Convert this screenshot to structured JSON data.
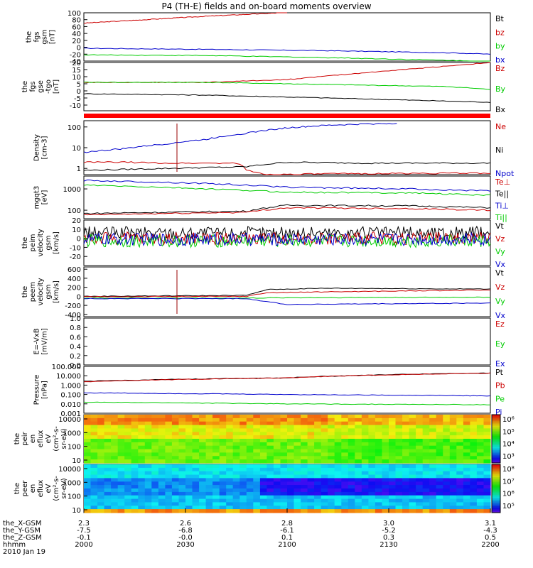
{
  "title": "P4 (TH-E) fields and on-board moments overview",
  "colors": {
    "black": "#000000",
    "red": "#cc0000",
    "green": "#00cc00",
    "blue": "#0000cc",
    "bar_red": "#ff0000"
  },
  "chart_data": [
    {
      "type": "line",
      "panel": "fgs-gsm",
      "ylabel": [
        "the",
        "fgs",
        "gsm",
        "[nT]"
      ],
      "ylim": [
        -40,
        100
      ],
      "y_ticks": [
        "100",
        "80",
        "60",
        "40",
        "20",
        "0",
        "-20",
        "-40"
      ],
      "legend": [
        {
          "name": "Bt",
          "color": "black"
        },
        {
          "name": "bz",
          "color": "red"
        },
        {
          "name": "by",
          "color": "green"
        },
        {
          "name": "bx",
          "color": "blue"
        }
      ],
      "series": [
        {
          "name": "bz",
          "color": "red",
          "x": [
            0,
            0.15,
            0.3,
            0.45,
            0.5
          ],
          "y": [
            70,
            80,
            90,
            98,
            101
          ]
        },
        {
          "name": "by",
          "color": "green",
          "x": [
            0,
            0.3,
            0.6,
            0.9,
            1
          ],
          "y": [
            -22,
            -24,
            -30,
            -38,
            -42
          ]
        },
        {
          "name": "bx",
          "color": "blue",
          "x": [
            0,
            0.3,
            0.6,
            0.9,
            1
          ],
          "y": [
            -3,
            -6,
            -10,
            -16,
            -20
          ]
        }
      ]
    },
    {
      "type": "line",
      "panel": "fgs-gse",
      "ylabel": [
        "the",
        "fgs",
        "gse",
        "-tgo",
        "[nT]"
      ],
      "ylim": [
        -14,
        20
      ],
      "y_ticks": [
        "20",
        "15",
        "10",
        "5",
        "0",
        "-5",
        "-10"
      ],
      "legend": [
        {
          "name": "Bz",
          "color": "red"
        },
        {
          "name": "By",
          "color": "green"
        },
        {
          "name": "Bx",
          "color": "black"
        }
      ],
      "series": [
        {
          "name": "Bz",
          "color": "red",
          "x": [
            0,
            0.3,
            0.5,
            0.7,
            1
          ],
          "y": [
            6,
            6,
            8,
            13,
            20
          ]
        },
        {
          "name": "By",
          "color": "green",
          "x": [
            0,
            0.3,
            0.5,
            0.7,
            0.9,
            1
          ],
          "y": [
            6,
            6,
            5,
            4,
            3,
            1
          ]
        },
        {
          "name": "Bx",
          "color": "black",
          "x": [
            0,
            0.3,
            0.6,
            1
          ],
          "y": [
            -2,
            -3,
            -5,
            -8
          ]
        }
      ]
    },
    {
      "type": "line",
      "panel": "density",
      "ylabel": [
        "Density",
        "[cm-3]"
      ],
      "scale": "log",
      "ylim": [
        0.5,
        200
      ],
      "y_ticks": [
        "100",
        "10",
        "1"
      ],
      "legend": [
        {
          "name": "Ne",
          "color": "red"
        },
        {
          "name": "Ni",
          "color": "black"
        },
        {
          "name": "Npot",
          "color": "blue"
        }
      ],
      "series": [
        {
          "name": "Npot",
          "color": "blue",
          "x": [
            0,
            0.1,
            0.2,
            0.3,
            0.4,
            0.5,
            0.6,
            0.7,
            0.77
          ],
          "y": [
            6,
            9,
            15,
            25,
            50,
            90,
            120,
            140,
            150
          ]
        },
        {
          "name": "Ne",
          "color": "red",
          "x": [
            0,
            0.1,
            0.2,
            0.38,
            0.4,
            0.45,
            0.6,
            1
          ],
          "y": [
            2,
            2,
            1.8,
            1.8,
            0.8,
            0.5,
            0.55,
            0.6
          ]
        },
        {
          "name": "Ni",
          "color": "black",
          "x": [
            0,
            0.2,
            0.4,
            0.5,
            0.7,
            1
          ],
          "y": [
            0.8,
            1,
            1.2,
            2,
            1.8,
            1.8
          ]
        }
      ]
    },
    {
      "type": "line",
      "panel": "temperature",
      "ylabel": [
        "mgqt3",
        "[eV]"
      ],
      "scale": "log",
      "ylim": [
        40,
        4000
      ],
      "y_ticks": [
        "1000",
        "100"
      ],
      "legend": [
        {
          "name": "Te⊥",
          "color": "red"
        },
        {
          "name": "Te||",
          "color": "black"
        },
        {
          "name": "Ti⊥",
          "color": "blue"
        },
        {
          "name": "Ti||",
          "color": "green"
        }
      ],
      "series": [
        {
          "name": "Ti⊥",
          "color": "blue",
          "x": [
            0,
            0.3,
            0.5,
            0.8,
            1
          ],
          "y": [
            2500,
            1800,
            1200,
            1000,
            800
          ]
        },
        {
          "name": "Ti||",
          "color": "green",
          "x": [
            0,
            0.3,
            0.5,
            0.8,
            1
          ],
          "y": [
            1500,
            1000,
            700,
            650,
            500
          ]
        },
        {
          "name": "Te||",
          "color": "black",
          "x": [
            0,
            0.3,
            0.4,
            0.5,
            0.8,
            1
          ],
          "y": [
            70,
            85,
            90,
            170,
            160,
            130
          ]
        },
        {
          "name": "Te⊥",
          "color": "red",
          "x": [
            0,
            0.3,
            0.4,
            0.5,
            0.8,
            1
          ],
          "y": [
            60,
            75,
            80,
            130,
            120,
            100
          ]
        }
      ]
    },
    {
      "type": "line",
      "panel": "peim-velocity-gsm",
      "ylabel": [
        "the",
        "peim",
        "velocity",
        "gsm",
        "[km/s]"
      ],
      "ylim": [
        -30,
        20
      ],
      "y_ticks": [
        "20",
        "10",
        "0",
        "-10",
        "-20"
      ],
      "legend": [
        {
          "name": "Vt",
          "color": "black"
        },
        {
          "name": "Vz",
          "color": "red"
        },
        {
          "name": "Vy",
          "color": "green"
        },
        {
          "name": "Vx",
          "color": "blue"
        }
      ],
      "series": [
        {
          "name": "Vt",
          "color": "black",
          "x": [
            0,
            1
          ],
          "y": [
            6,
            6
          ]
        },
        {
          "name": "Vz",
          "color": "red",
          "x": [
            0,
            1
          ],
          "y": [
            0,
            0
          ]
        },
        {
          "name": "Vy",
          "color": "green",
          "x": [
            0,
            1
          ],
          "y": [
            -3,
            -3
          ]
        },
        {
          "name": "Vx",
          "color": "blue",
          "x": [
            0,
            1
          ],
          "y": [
            -1,
            -1
          ]
        }
      ]
    },
    {
      "type": "line",
      "panel": "peem-velocity-gsm",
      "ylabel": [
        "the",
        "peem",
        "velocity",
        "gsm",
        "[km/s]"
      ],
      "ylim": [
        -450,
        650
      ],
      "y_ticks": [
        "600",
        "400",
        "200",
        "0",
        "-200",
        "-400"
      ],
      "legend": [
        {
          "name": "Vt",
          "color": "black"
        },
        {
          "name": "Vz",
          "color": "red"
        },
        {
          "name": "Vy",
          "color": "green"
        },
        {
          "name": "Vx",
          "color": "blue"
        }
      ],
      "series": [
        {
          "name": "Vt",
          "color": "black",
          "x": [
            0,
            0.4,
            0.45,
            0.6,
            1
          ],
          "y": [
            0,
            20,
            150,
            180,
            160
          ]
        },
        {
          "name": "Vz",
          "color": "red",
          "x": [
            0,
            0.4,
            0.45,
            0.6,
            1
          ],
          "y": [
            -10,
            0,
            80,
            100,
            140
          ]
        },
        {
          "name": "Vy",
          "color": "green",
          "x": [
            0,
            0.4,
            0.5,
            1
          ],
          "y": [
            -40,
            -40,
            -30,
            -20
          ]
        },
        {
          "name": "Vx",
          "color": "blue",
          "x": [
            0,
            0.4,
            0.5,
            1
          ],
          "y": [
            -50,
            -50,
            -180,
            -150
          ]
        }
      ]
    },
    {
      "type": "line",
      "panel": "efield",
      "ylabel": [
        "E=-VxB",
        "[mV/m]"
      ],
      "ylim": [
        0,
        1
      ],
      "y_ticks": [
        "1.0",
        "0.8",
        "0.6",
        "0.4",
        "0.2",
        "0.0"
      ],
      "legend": [
        {
          "name": "Ez",
          "color": "red"
        },
        {
          "name": "Ey",
          "color": "green"
        },
        {
          "name": "Ex",
          "color": "blue"
        }
      ],
      "series": []
    },
    {
      "type": "line",
      "panel": "pressure",
      "ylabel": [
        "Pressure",
        "[nPa]"
      ],
      "scale": "log",
      "ylim": [
        0.001,
        100
      ],
      "y_ticks": [
        "100.000",
        "10.000",
        "1.000",
        "0.100",
        "0.010",
        "0.001"
      ],
      "legend": [
        {
          "name": "Pt",
          "color": "black"
        },
        {
          "name": "Pb",
          "color": "red"
        },
        {
          "name": "Pe",
          "color": "green"
        },
        {
          "name": "Pi",
          "color": "blue"
        }
      ],
      "series": [
        {
          "name": "Pt",
          "color": "black",
          "x": [
            0,
            0.5,
            1
          ],
          "y": [
            2.5,
            6,
            20
          ]
        },
        {
          "name": "Pb",
          "color": "red",
          "x": [
            0,
            0.5,
            1
          ],
          "y": [
            2.3,
            5.8,
            19
          ]
        },
        {
          "name": "Pi",
          "color": "blue",
          "x": [
            0,
            0.5,
            1
          ],
          "y": [
            0.15,
            0.1,
            0.07
          ]
        },
        {
          "name": "Pe",
          "color": "green",
          "x": [
            0,
            0.5,
            1
          ],
          "y": [
            0.015,
            0.01,
            0.008
          ]
        }
      ]
    },
    {
      "type": "heatmap",
      "panel": "peir-spectrogram",
      "ylabel": [
        "the",
        "peir",
        "en",
        "eflux",
        "eV",
        "(cm²-s-",
        "sr-eV)"
      ],
      "y_ticks": [
        "10000",
        "1000",
        "100",
        "10"
      ],
      "colorbar_ticks": [
        "10⁶",
        "10⁵",
        "10⁴",
        "10³"
      ]
    },
    {
      "type": "heatmap",
      "panel": "peer-spectrogram",
      "ylabel": [
        "the",
        "peer",
        "en",
        "eflux",
        "eV",
        "(cm²-s-",
        "sr-eV)"
      ],
      "y_ticks": [
        "10000",
        "1000",
        "100",
        "10"
      ],
      "colorbar_ticks": [
        "10⁸",
        "10⁷",
        "10⁶",
        "10⁵"
      ]
    }
  ],
  "x_axis": {
    "row_labels": [
      "the_X-GSM",
      "the_Y-GSM",
      "the_Z-GSM",
      "hhmm",
      "2010 Jan 19"
    ],
    "ticks": [
      {
        "x": "2.3",
        "y": "-7.5",
        "z": "-0.1",
        "t": "2000"
      },
      {
        "x": "2.6",
        "y": "-6.8",
        "z": "-0.0",
        "t": "2030"
      },
      {
        "x": "2.8",
        "y": "-6.1",
        "z": "0.1",
        "t": "2100"
      },
      {
        "x": "3.0",
        "y": "-5.2",
        "z": "0.3",
        "t": "2130"
      },
      {
        "x": "3.1",
        "y": "-4.3",
        "z": "0.5",
        "t": "2200"
      }
    ]
  }
}
